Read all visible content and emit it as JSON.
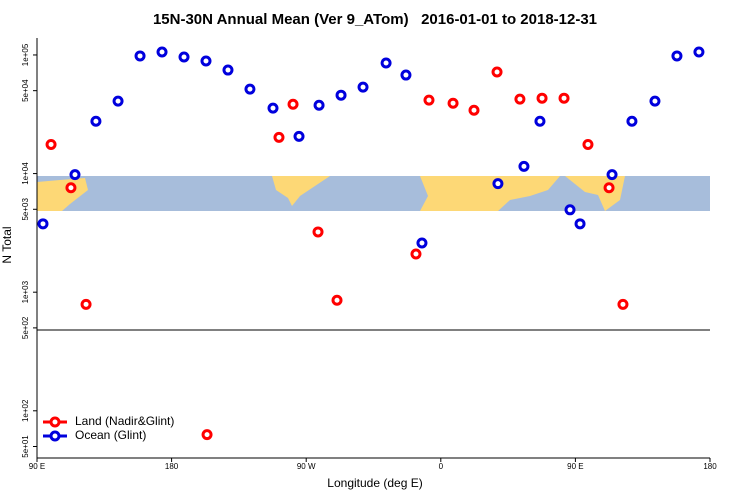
{
  "chart_data": {
    "type": "scatter",
    "title": "15N-30N Annual Mean (Ver 9_ATom)   2016-01-01 to 2018-12-31",
    "xlabel": "Longitude (deg E)",
    "ylabel": "N Total",
    "xlim": [
      90,
      540
    ],
    "xticks": [
      {
        "value": 90,
        "label": "90 E"
      },
      {
        "value": 180,
        "label": "180"
      },
      {
        "value": 270,
        "label": "90 W"
      },
      {
        "value": 360,
        "label": "0"
      },
      {
        "value": 450,
        "label": "90 E"
      },
      {
        "value": 540,
        "label": "180"
      }
    ],
    "ylim": [
      40,
      139000
    ],
    "log_y": true,
    "yticks": [
      {
        "value": 50,
        "label": "5e+01"
      },
      {
        "value": 100,
        "label": "1e+02"
      },
      {
        "value": 500,
        "label": "5e+02"
      },
      {
        "value": 1000,
        "label": "1e+03"
      },
      {
        "value": 5000,
        "label": "5e+03"
      },
      {
        "value": 10000,
        "label": "1e+04"
      },
      {
        "value": 50000,
        "label": "5e+04"
      },
      {
        "value": 100000,
        "label": "1e+05"
      }
    ],
    "legend": "lower left",
    "series": [
      {
        "name": "Land (Nadir&Glint)",
        "color": "#ff0000",
        "x": [
          99.4,
          112.7,
          122.8,
          203.7,
          251.8,
          261.2,
          277.9,
          290.6,
          343.4,
          352.1,
          368.2,
          382.2,
          397.6,
          412.9,
          427.7,
          442.4,
          458.4,
          472.5,
          481.8
        ],
        "values": [
          17600,
          7600,
          790,
          63,
          20200,
          38400,
          3220,
          855,
          2100,
          41600,
          39200,
          34200,
          71800,
          42400,
          43200,
          43200,
          17600,
          7600,
          790
        ]
      },
      {
        "name": "Ocean (Glint)",
        "color": "#0000dd",
        "x": [
          94,
          115.4,
          129.4,
          144.2,
          158.9,
          173.6,
          188.3,
          203,
          217.7,
          232.4,
          247.8,
          265.2,
          278.6,
          293.3,
          308,
          323.4,
          336.7,
          347.4,
          398.2,
          415.6,
          426.3,
          446.4,
          453.1,
          474.5,
          487.8,
          503.2,
          517.9,
          532.6
        ],
        "values": [
          3770,
          9800,
          27600,
          40800,
          98100,
          106000,
          96200,
          88900,
          74600,
          51500,
          35600,
          20600,
          37700,
          45800,
          53600,
          85500,
          67700,
          2600,
          8220,
          11500,
          27600,
          4950,
          3770,
          9800,
          27600,
          40800,
          98100,
          106000
        ]
      }
    ]
  }
}
